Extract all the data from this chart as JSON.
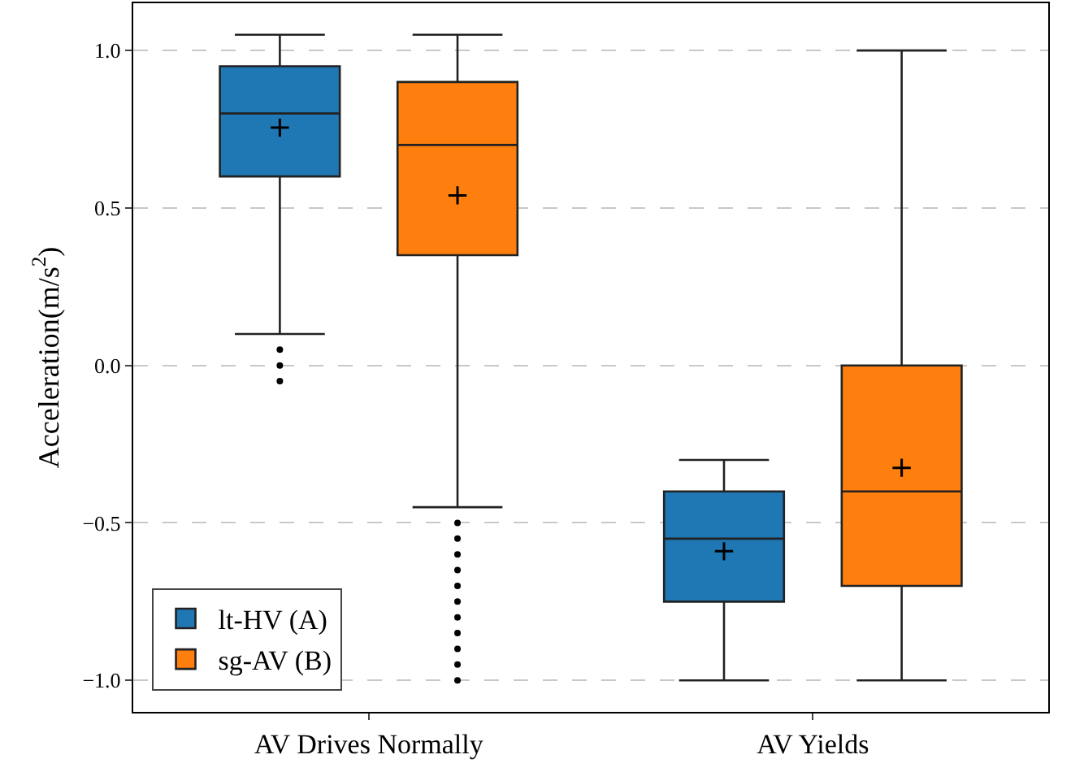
{
  "chart_data": {
    "type": "box",
    "ylabel": "Acceleration(m/s$^{2}$)",
    "categories": [
      "AV Drives Normally",
      "AV Yields"
    ],
    "series": [
      {
        "name": "lt-HV (A)",
        "color": "#1f77b4",
        "boxes": [
          {
            "low": 0.1,
            "q1": 0.6,
            "median": 0.8,
            "q3": 0.95,
            "high": 1.05,
            "mean": 0.755,
            "outliers": [
              0.05,
              0.0,
              -0.05
            ]
          },
          {
            "low": -1.0,
            "q1": -0.75,
            "median": -0.55,
            "q3": -0.4,
            "high": -0.3,
            "mean": -0.59
          }
        ]
      },
      {
        "name": "sg-AV (B)",
        "color": "#ff7f0e",
        "boxes": [
          {
            "low": -0.45,
            "q1": 0.35,
            "median": 0.7,
            "q3": 0.9,
            "high": 1.05,
            "mean": 0.54,
            "outliers": [
              -0.5,
              -0.55,
              -0.6,
              -0.65,
              -0.7,
              -0.75,
              -0.8,
              -0.85,
              -0.9,
              -0.95,
              -1.0
            ]
          },
          {
            "low": -1.0,
            "q1": -0.7,
            "median": -0.4,
            "q3": 0.0,
            "high": 1.0,
            "mean": -0.325
          }
        ]
      }
    ],
    "ylim": [
      -1.1,
      1.15
    ],
    "yticks": [
      {
        "value": -1.0,
        "label": "−1.0"
      },
      {
        "value": -0.5,
        "label": "−0.5"
      },
      {
        "value": 0.0,
        "label": "0.0"
      },
      {
        "value": 0.5,
        "label": "0.5"
      },
      {
        "value": 1.0,
        "label": "1.0"
      }
    ],
    "grid": "y",
    "legend": "bottom left"
  }
}
